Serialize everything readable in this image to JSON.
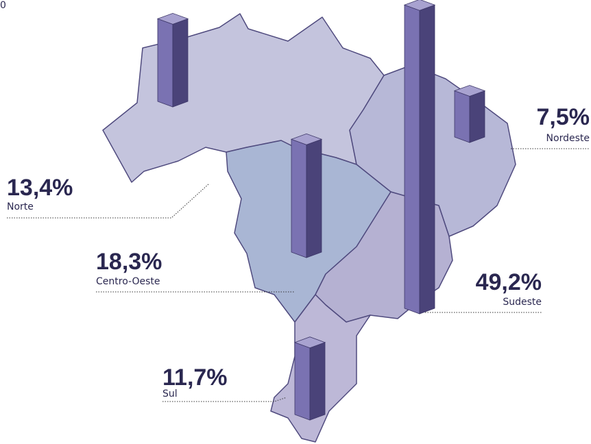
{
  "corner_label": "0",
  "regions": [
    {
      "name": "Norte",
      "value": 13.4,
      "value_label": "13,4%"
    },
    {
      "name": "Centro-Oeste",
      "value": 18.3,
      "value_label": "18,3%"
    },
    {
      "name": "Sudeste",
      "value": 49.2,
      "value_label": "49,2%"
    },
    {
      "name": "Nordeste",
      "value": 7.5,
      "value_label": "7,5%"
    },
    {
      "name": "Sul",
      "value": 11.7,
      "value_label": "11,7%"
    }
  ]
}
